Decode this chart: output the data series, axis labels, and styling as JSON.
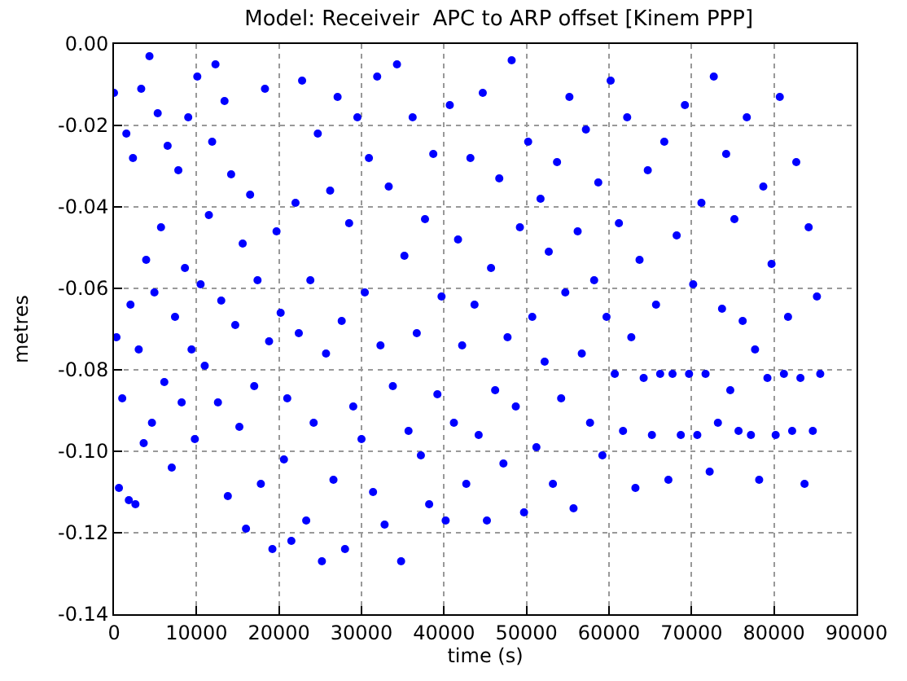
{
  "chart_data": {
    "type": "scatter",
    "title": "Model: Receiveir  APC to ARP offset [Kinem PPP]",
    "xlabel": "time (s)",
    "ylabel": "metres",
    "xlim": [
      0,
      90000
    ],
    "ylim": [
      -0.14,
      0.0
    ],
    "xticks": [
      0,
      10000,
      20000,
      30000,
      40000,
      50000,
      60000,
      70000,
      80000,
      90000
    ],
    "yticks": [
      {
        "value": -0.14,
        "label": "-0.14"
      },
      {
        "value": -0.12,
        "label": "-0.12"
      },
      {
        "value": -0.1,
        "label": "-0.10"
      },
      {
        "value": -0.08,
        "label": "-0.08"
      },
      {
        "value": -0.06,
        "label": "-0.06"
      },
      {
        "value": -0.04,
        "label": "-0.04"
      },
      {
        "value": -0.02,
        "label": "-0.02"
      },
      {
        "value": 0.0,
        "label": "0.00"
      }
    ],
    "grid": true,
    "marker": "circle",
    "series": [
      {
        "color": "#0000ff",
        "x": [
          0,
          300,
          600,
          1000,
          1500,
          1800,
          2000,
          2300,
          2600,
          3000,
          3300,
          3600,
          3900,
          4300,
          4600,
          4900,
          5300,
          5700,
          6100,
          6500,
          7000,
          7400,
          7800,
          8200,
          8600,
          9000,
          9400,
          9800,
          10100,
          10500,
          11000,
          11500,
          11900,
          12300,
          12600,
          13000,
          13400,
          13800,
          14200,
          14700,
          15200,
          15600,
          16000,
          16500,
          17000,
          17400,
          17800,
          18300,
          18800,
          19200,
          19700,
          20200,
          20600,
          21000,
          21500,
          22000,
          22400,
          22800,
          23300,
          23800,
          24200,
          24700,
          25200,
          25700,
          26200,
          26600,
          27100,
          27600,
          28000,
          28500,
          29000,
          29500,
          30000,
          30400,
          30900,
          31400,
          31900,
          32300,
          32800,
          33300,
          33800,
          34300,
          34800,
          35200,
          35700,
          36200,
          36700,
          37200,
          37700,
          38200,
          38700,
          39200,
          39700,
          40200,
          40700,
          41200,
          41700,
          42200,
          42700,
          43200,
          43700,
          44200,
          44700,
          45200,
          45700,
          46200,
          46700,
          47200,
          47700,
          48200,
          48700,
          49200,
          49700,
          50200,
          50700,
          51200,
          51700,
          52200,
          52700,
          53200,
          53700,
          54200,
          54700,
          55200,
          55700,
          56200,
          56700,
          57200,
          57700,
          58200,
          58700,
          59200,
          59700,
          60200,
          60700,
          61200,
          61700,
          62200,
          62700,
          63200,
          63700,
          64200,
          64700,
          65200,
          65700,
          66200,
          66700,
          67200,
          67700,
          68200,
          68700,
          69200,
          69700,
          70200,
          70700,
          71200,
          71700,
          72200,
          72700,
          73200,
          73700,
          74200,
          74700,
          75200,
          75700,
          76200,
          76700,
          77200,
          77700,
          78200,
          78700,
          79200,
          79700,
          80200,
          80700,
          81200,
          81700,
          82200,
          82700,
          83200,
          83700,
          84200,
          84700,
          85200,
          85600
        ],
        "values": [
          -0.012,
          -0.072,
          -0.109,
          -0.087,
          -0.022,
          -0.112,
          -0.064,
          -0.028,
          -0.113,
          -0.075,
          -0.011,
          -0.098,
          -0.053,
          -0.003,
          -0.093,
          -0.061,
          -0.017,
          -0.045,
          -0.083,
          -0.025,
          -0.104,
          -0.067,
          -0.031,
          -0.088,
          -0.055,
          -0.018,
          -0.075,
          -0.097,
          -0.008,
          -0.059,
          -0.079,
          -0.042,
          -0.024,
          -0.005,
          -0.088,
          -0.063,
          -0.014,
          -0.111,
          -0.032,
          -0.069,
          -0.094,
          -0.049,
          -0.119,
          -0.037,
          -0.084,
          -0.058,
          -0.108,
          -0.011,
          -0.073,
          -0.124,
          -0.046,
          -0.066,
          -0.102,
          -0.087,
          -0.122,
          -0.039,
          -0.071,
          -0.009,
          -0.117,
          -0.058,
          -0.093,
          -0.022,
          -0.127,
          -0.076,
          -0.036,
          -0.107,
          -0.013,
          -0.068,
          -0.124,
          -0.044,
          -0.089,
          -0.018,
          -0.097,
          -0.061,
          -0.028,
          -0.11,
          -0.008,
          -0.074,
          -0.118,
          -0.035,
          -0.084,
          -0.005,
          -0.127,
          -0.052,
          -0.095,
          -0.018,
          -0.071,
          -0.101,
          -0.043,
          -0.113,
          -0.027,
          -0.086,
          -0.062,
          -0.117,
          -0.015,
          -0.093,
          -0.048,
          -0.074,
          -0.108,
          -0.028,
          -0.064,
          -0.096,
          -0.012,
          -0.117,
          -0.055,
          -0.085,
          -0.033,
          -0.103,
          -0.072,
          -0.004,
          -0.089,
          -0.045,
          -0.115,
          -0.024,
          -0.067,
          -0.099,
          -0.038,
          -0.078,
          -0.051,
          -0.108,
          -0.029,
          -0.087,
          -0.061,
          -0.013,
          -0.114,
          -0.046,
          -0.076,
          -0.021,
          -0.093,
          -0.058,
          -0.034,
          -0.101,
          -0.067,
          -0.009,
          -0.081,
          -0.044,
          -0.095,
          -0.018,
          -0.072,
          -0.109,
          -0.053,
          -0.082,
          -0.031,
          -0.096,
          -0.064,
          -0.081,
          -0.024,
          -0.107,
          -0.081,
          -0.047,
          -0.096,
          -0.015,
          -0.081,
          -0.059,
          -0.096,
          -0.039,
          -0.081,
          -0.105,
          -0.008,
          -0.093,
          -0.065,
          -0.027,
          -0.085,
          -0.043,
          -0.095,
          -0.068,
          -0.018,
          -0.096,
          -0.075,
          -0.107,
          -0.035,
          -0.082,
          -0.054,
          -0.096,
          -0.013,
          -0.081,
          -0.067,
          -0.095,
          -0.029,
          -0.082,
          -0.108,
          -0.045,
          -0.095,
          -0.062,
          -0.081
        ]
      }
    ]
  }
}
